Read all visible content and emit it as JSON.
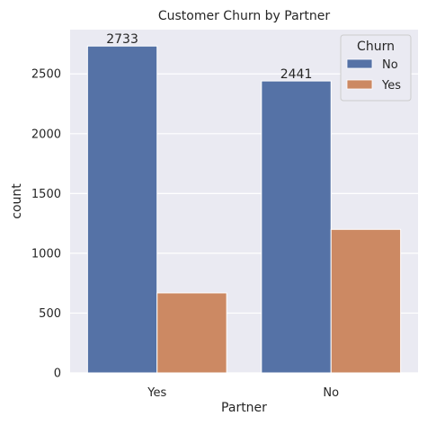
{
  "chart_data": {
    "type": "bar",
    "title": "Customer Churn by Partner",
    "xlabel": "Partner",
    "ylabel": "count",
    "categories": [
      "Yes",
      "No"
    ],
    "series": [
      {
        "name": "No",
        "values": [
          2733,
          2441
        ],
        "color": "#5572a6"
      },
      {
        "name": "Yes",
        "values": [
          669,
          1200
        ],
        "color": "#cc8963"
      }
    ],
    "data_labels": [
      {
        "category": "Yes",
        "series": "No",
        "text": "2733"
      },
      {
        "category": "No",
        "series": "No",
        "text": "2441"
      }
    ],
    "yticks": [
      0,
      500,
      1000,
      1500,
      2000,
      2500
    ],
    "ylim": [
      0,
      2870
    ],
    "grid": true,
    "background": "#eaeaf2",
    "legend": {
      "title": "Churn",
      "placement": "top-right"
    }
  }
}
